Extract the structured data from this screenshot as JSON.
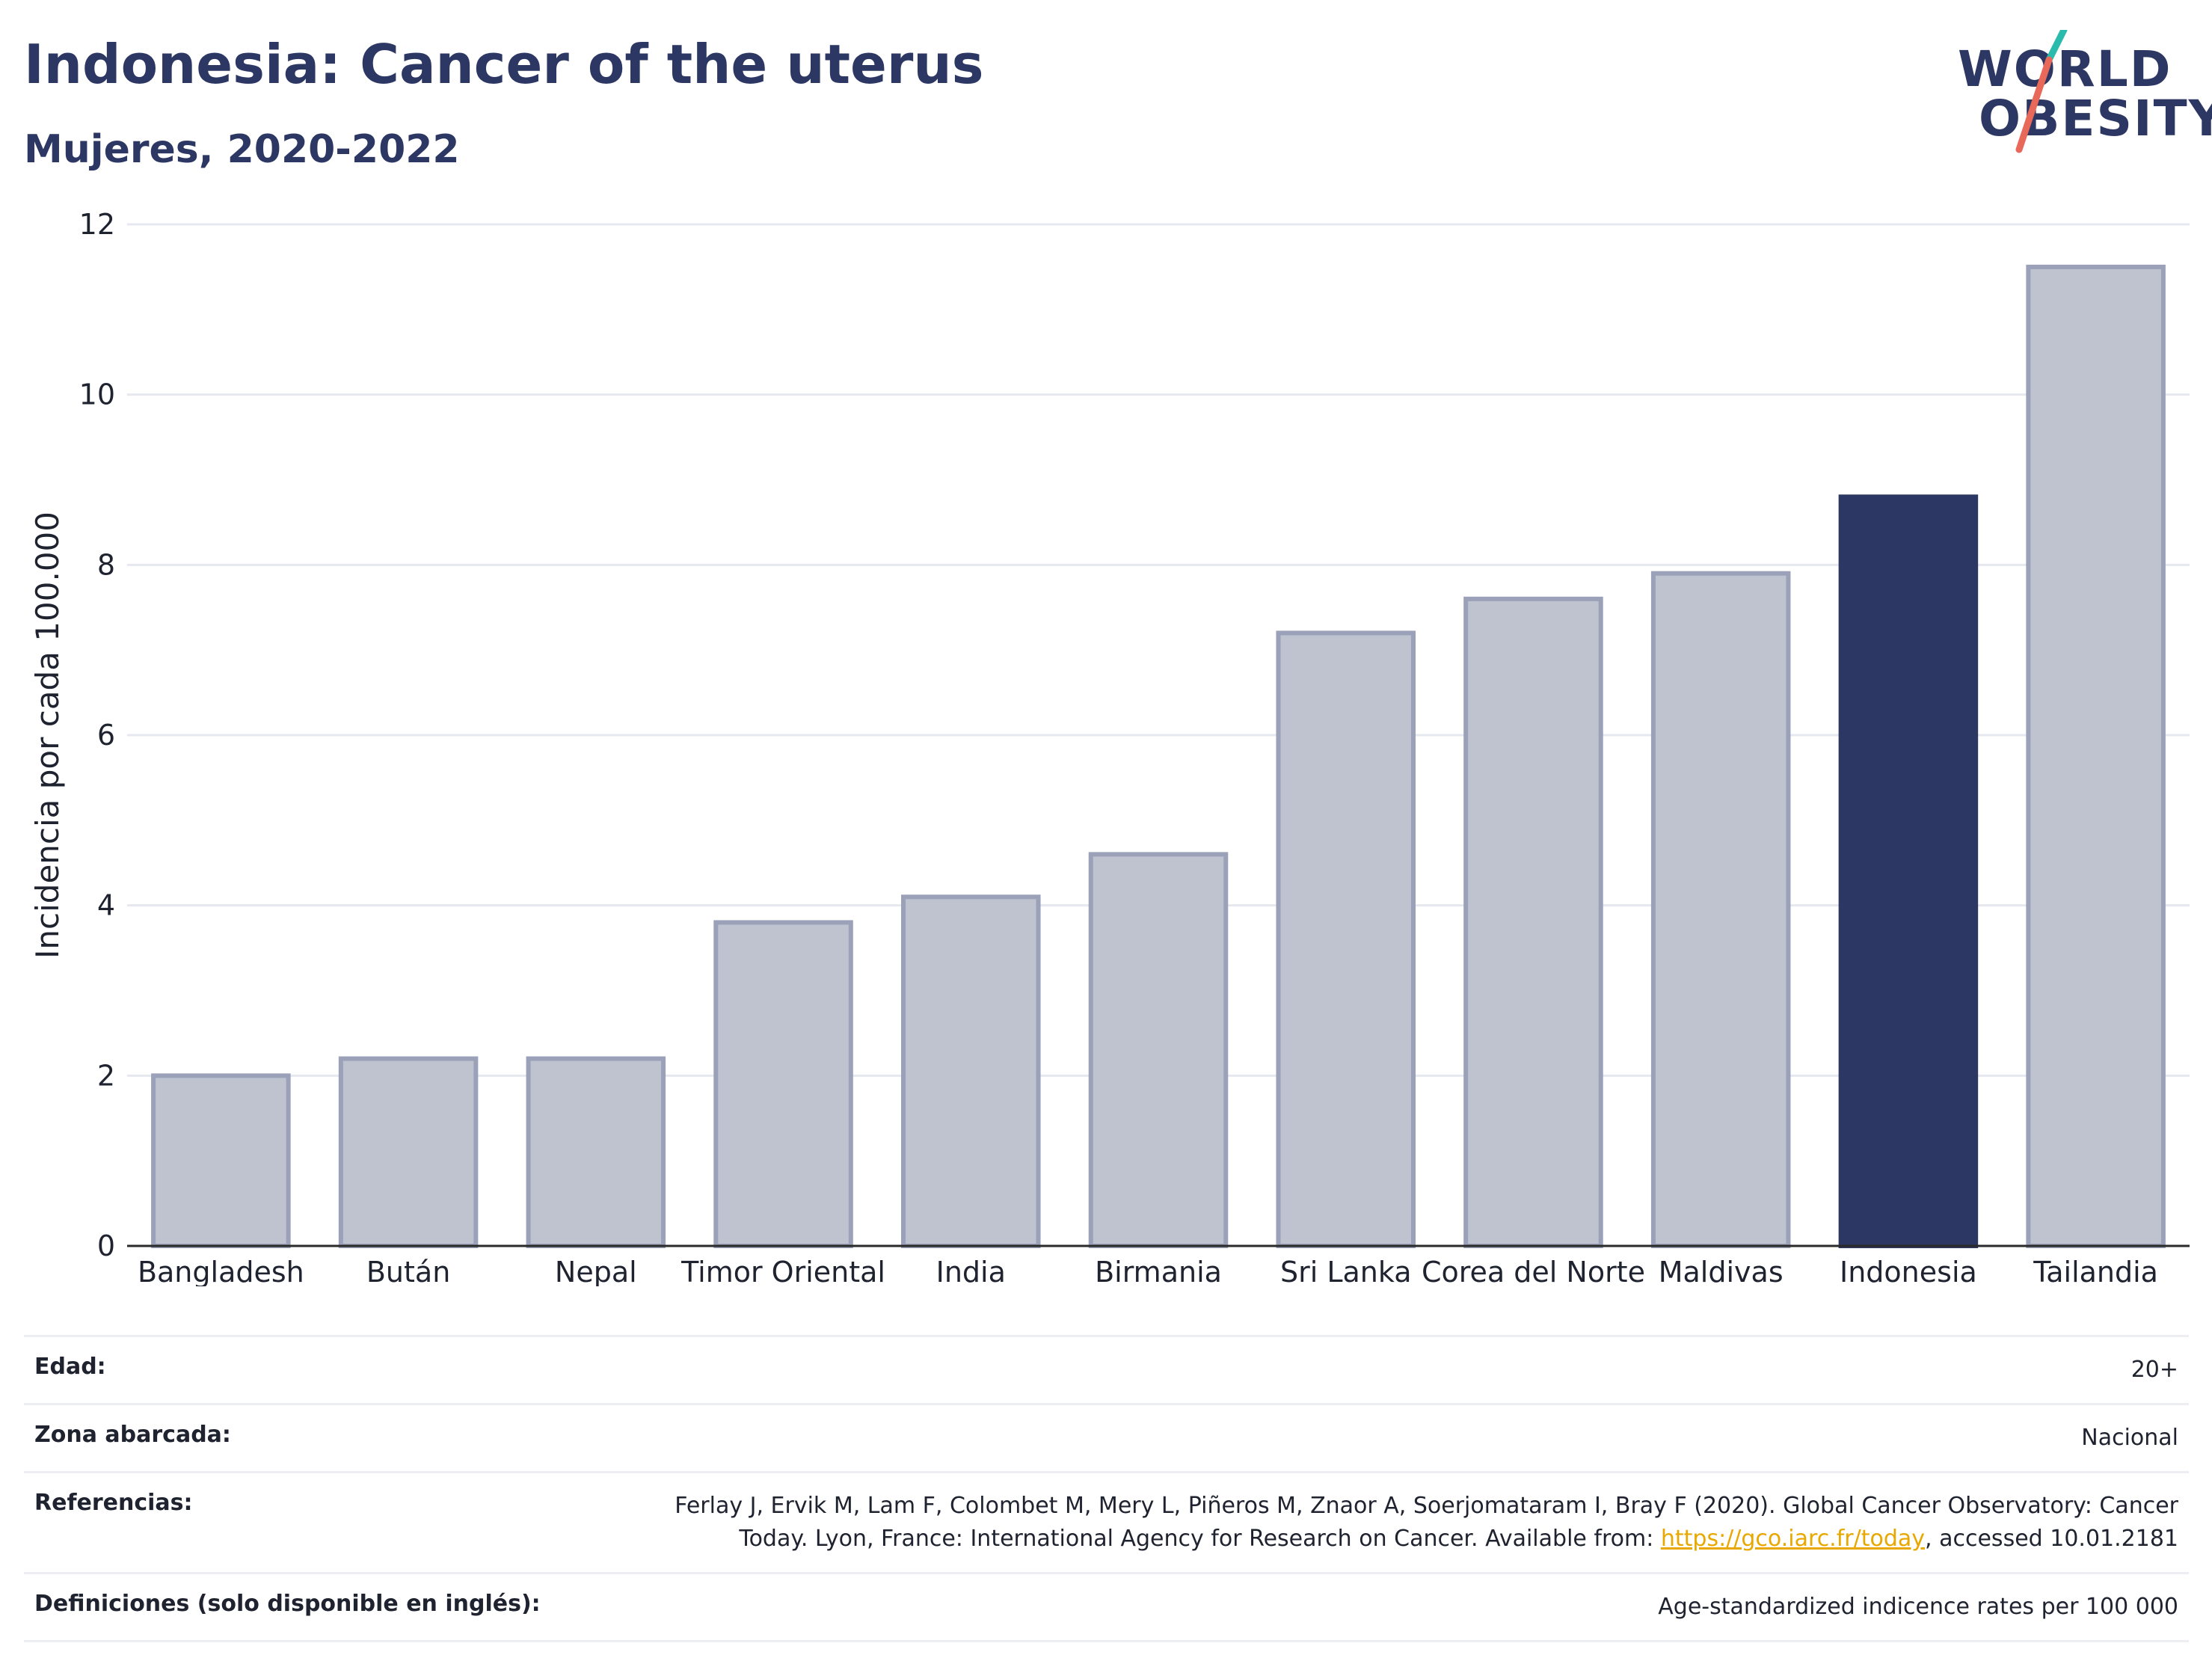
{
  "header": {
    "title": "Indonesia: Cancer of the uterus",
    "subtitle": "Mujeres, 2020-2022"
  },
  "logo": {
    "line1": "WORLD",
    "line2": "OBESITY",
    "colors": {
      "navy": "#2c3763",
      "teal": "#2bbbad",
      "coral": "#e8685a"
    }
  },
  "chart_data": {
    "type": "bar",
    "categories": [
      "Bangladesh",
      "Bután",
      "Nepal",
      "Timor Oriental",
      "India",
      "Birmania",
      "Sri Lanka",
      "Corea del Norte",
      "Maldivas",
      "Indonesia",
      "Tailandia"
    ],
    "values": [
      2.0,
      2.2,
      2.2,
      3.8,
      4.1,
      4.6,
      7.2,
      7.6,
      7.9,
      8.8,
      11.5
    ],
    "highlight": "Indonesia",
    "xlabel": "",
    "ylabel": "Incidencia por cada 100.000",
    "ylim": [
      0,
      12
    ],
    "yticks": [
      0,
      2,
      4,
      6,
      8,
      10,
      12
    ],
    "grid": true,
    "colors": {
      "bar": "#bfc3d0",
      "bar_edge": "#9aa1b8",
      "highlight": "#2c3763"
    }
  },
  "info_table": [
    {
      "key": "Edad:",
      "value": "20+"
    },
    {
      "key": "Zona abarcada:",
      "value": "Nacional"
    },
    {
      "key": "Referencias:",
      "value_line1": "Ferlay J, Ervik M, Lam F, Colombet M, Mery L, Piñeros M, Znaor A, Soerjomataram I, Bray F (2020). Global Cancer Observatory: Cancer",
      "value_line2_pre": "Today. Lyon, France: International Agency for Research on Cancer. Available from: ",
      "link": "https://gco.iarc.fr/today",
      "value_line2_post": ", accessed 10.01.2181"
    },
    {
      "key": "Definiciones (solo disponible en inglés):",
      "value": "Age-standardized indicence rates per 100 000"
    }
  ]
}
